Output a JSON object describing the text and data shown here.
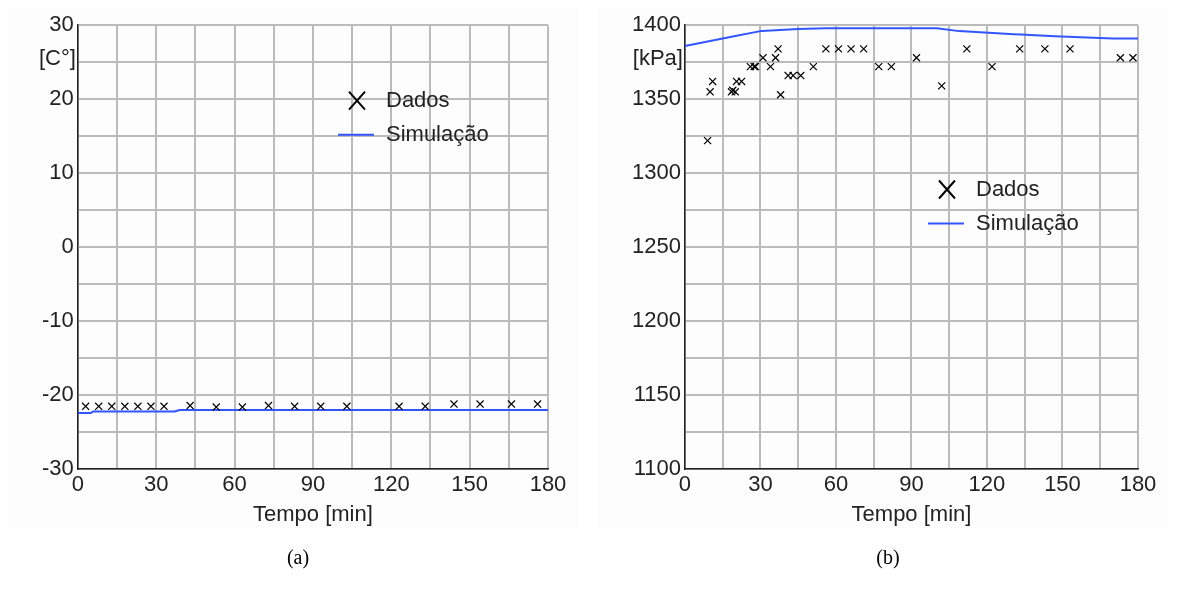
{
  "chart_data": [
    {
      "type": "scatter",
      "xlabel": "Tempo [min]",
      "ylabel": "[C°]",
      "xlim": [
        0,
        180
      ],
      "ylim": [
        -30,
        30
      ],
      "xticks": [
        0,
        {
          "value": 15,
          "label": null
        },
        30,
        {
          "value": 45,
          "label": null
        },
        60,
        {
          "value": 75,
          "label": null
        },
        90,
        {
          "value": 105,
          "label": null
        },
        120,
        {
          "value": 135,
          "label": null
        },
        150,
        {
          "value": 165,
          "label": null
        },
        180
      ],
      "yticks": [
        -30,
        {
          "value": -25,
          "label": null
        },
        -20,
        {
          "value": -15,
          "label": null
        },
        -10,
        {
          "value": -5,
          "label": null
        },
        0,
        {
          "value": 5,
          "label": null
        },
        10,
        {
          "value": 15,
          "label": null
        },
        20,
        {
          "value": 25,
          "label": null
        },
        30
      ],
      "grid": true,
      "legend": "top right",
      "annotations": [
        "(a)"
      ],
      "series": [
        {
          "name": "Dados",
          "marker": "cross",
          "color": "#000000",
          "x": [
            3,
            8,
            13,
            18,
            23,
            28,
            33,
            43,
            53,
            63,
            73,
            83,
            93,
            103,
            123,
            133,
            144,
            154,
            166,
            176
          ],
          "values": [
            -21.5,
            -21.5,
            -21.5,
            -21.5,
            -21.5,
            -21.5,
            -21.5,
            -21.4,
            -21.6,
            -21.6,
            -21.4,
            -21.5,
            -21.5,
            -21.5,
            -21.5,
            -21.5,
            -21.2,
            -21.2,
            -21.2,
            -21.2
          ]
        },
        {
          "name": "Simulação",
          "type": "line",
          "color": "#3355ff",
          "x": [
            0,
            5,
            6,
            37,
            39,
            180
          ],
          "values": [
            -22.4,
            -22.4,
            -22.2,
            -22.2,
            -22.0,
            -22.0
          ]
        }
      ]
    },
    {
      "type": "scatter",
      "xlabel": "Tempo [min]",
      "ylabel": "[kPa]",
      "xlim": [
        0,
        180
      ],
      "ylim": [
        1100,
        1400
      ],
      "xticks": [
        0,
        {
          "value": 15,
          "label": null
        },
        30,
        {
          "value": 45,
          "label": null
        },
        60,
        {
          "value": 75,
          "label": null
        },
        90,
        {
          "value": 105,
          "label": null
        },
        120,
        {
          "value": 135,
          "label": null
        },
        150,
        {
          "value": 165,
          "label": null
        },
        180
      ],
      "yticks": [
        1100,
        {
          "value": 1125,
          "label": null
        },
        1150,
        {
          "value": 1175,
          "label": null
        },
        1200,
        {
          "value": 1225,
          "label": null
        },
        1250,
        {
          "value": 1275,
          "label": null
        },
        1300,
        {
          "value": 1325,
          "label": null
        },
        1350,
        {
          "value": 1375,
          "label": null
        },
        1400
      ],
      "grid": true,
      "legend": "right",
      "annotations": [
        "(b)"
      ],
      "series": [
        {
          "name": "Dados",
          "marker": "cross",
          "color": "#000000",
          "x": [
            9,
            10,
            11,
            18.5,
            19,
            20,
            20.5,
            22.5,
            26,
            27.5,
            28,
            31,
            34,
            36,
            37,
            38,
            41,
            43,
            46,
            51,
            56,
            61,
            66,
            71,
            77,
            82,
            92,
            102,
            112,
            122,
            133,
            143,
            153,
            173,
            178
          ],
          "values": [
            1322,
            1355,
            1362,
            1355,
            1356,
            1355,
            1362,
            1362,
            1372,
            1372,
            1372,
            1378,
            1372,
            1378,
            1384,
            1353,
            1366,
            1366,
            1366,
            1372,
            1384,
            1384,
            1384,
            1384,
            1372,
            1372,
            1378,
            1359,
            1384,
            1372,
            1384,
            1384,
            1384,
            1378,
            1378
          ]
        },
        {
          "name": "Simulação",
          "type": "line",
          "color": "#3355ff",
          "x": [
            0,
            18,
            30,
            45,
            56,
            100,
            109,
            124,
            147,
            170,
            180
          ],
          "values": [
            1386,
            1392,
            1396,
            1397.5,
            1398,
            1398,
            1396,
            1394.5,
            1392.5,
            1391,
            1391
          ]
        }
      ]
    }
  ]
}
